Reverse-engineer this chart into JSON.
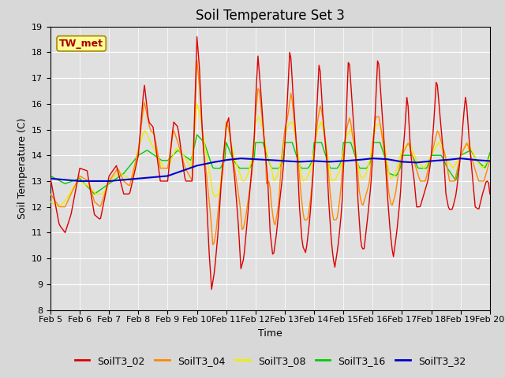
{
  "title": "Soil Temperature Set 3",
  "xlabel": "Time",
  "ylabel": "Soil Temperature (C)",
  "ylim": [
    8.0,
    19.0
  ],
  "yticks": [
    8.0,
    9.0,
    10.0,
    11.0,
    12.0,
    13.0,
    14.0,
    15.0,
    16.0,
    17.0,
    18.0,
    19.0
  ],
  "background_color": "#d8d8d8",
  "plot_bg_color": "#e0e0e0",
  "grid_color": "#ffffff",
  "series_colors": {
    "SoilT3_02": "#dd0000",
    "SoilT3_04": "#ff8800",
    "SoilT3_08": "#eeee00",
    "SoilT3_16": "#00cc00",
    "SoilT3_32": "#0000cc"
  },
  "annotation_text": "TW_met",
  "annotation_bg": "#ffff99",
  "annotation_border": "#aa8800",
  "annotation_text_color": "#aa0000",
  "title_fontsize": 12,
  "axis_label_fontsize": 9,
  "tick_fontsize": 8,
  "legend_fontsize": 9,
  "xtick_labels": [
    "Feb 5",
    "Feb 6",
    "Feb 7",
    "Feb 8",
    "Feb 9",
    "Feb 10",
    "Feb 11",
    "Feb 12",
    "Feb 13",
    "Feb 14",
    "Feb 15",
    "Feb 16",
    "Feb 17",
    "Feb 18",
    "Feb 19",
    "Feb 20"
  ],
  "series_labels": [
    "SoilT3_02",
    "SoilT3_04",
    "SoilT3_08",
    "SoilT3_16",
    "SoilT3_32"
  ]
}
